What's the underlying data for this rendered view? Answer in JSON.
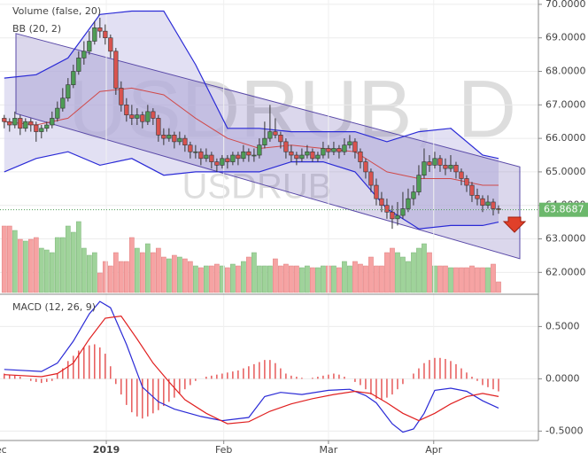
{
  "chart_data": [
    {
      "type": "candlestick",
      "watermark": "USDRUB, D",
      "watermark_sub": "USDRUB",
      "indicator_labels": [
        "Volume (false, 20)",
        "BB (20, 2)"
      ],
      "xlim": [
        -0.8,
        100.5
      ],
      "ylim": [
        61.4,
        70.13
      ],
      "yticks": [
        {
          "value": 62,
          "label": "62.0000"
        },
        {
          "value": 63,
          "label": "63.0000"
        },
        {
          "value": 64,
          "label": "64.0000"
        },
        {
          "value": 65,
          "label": "65.0000"
        },
        {
          "value": 66,
          "label": "66.0000"
        },
        {
          "value": 67,
          "label": "67.0000"
        },
        {
          "value": 68,
          "label": "68.0000"
        },
        {
          "value": 69,
          "label": "69.0000"
        },
        {
          "value": 70,
          "label": "70.0000"
        }
      ],
      "up_color": "#4e9c55",
      "down_color": "#d9534f",
      "volume_up_color": "#9fd39a",
      "volume_down_color": "#f6a3a3",
      "candles": [
        [
          66.6,
          66.7,
          66.3,
          66.5
        ],
        [
          66.5,
          66.6,
          66.2,
          66.4
        ],
        [
          66.4,
          66.8,
          66.3,
          66.6
        ],
        [
          66.6,
          66.7,
          66.1,
          66.3
        ],
        [
          66.3,
          66.6,
          66.2,
          66.5
        ],
        [
          66.5,
          66.6,
          66.2,
          66.4
        ],
        [
          66.4,
          66.5,
          65.9,
          66.2
        ],
        [
          66.2,
          66.4,
          66.0,
          66.3
        ],
        [
          66.3,
          66.5,
          66.2,
          66.4
        ],
        [
          66.4,
          66.8,
          66.3,
          66.6
        ],
        [
          66.6,
          67.1,
          66.5,
          66.9
        ],
        [
          66.9,
          67.5,
          66.8,
          67.2
        ],
        [
          67.2,
          67.8,
          67.1,
          67.6
        ],
        [
          67.6,
          68.2,
          67.5,
          68.0
        ],
        [
          68.0,
          68.6,
          67.9,
          68.4
        ],
        [
          68.4,
          68.9,
          68.2,
          68.6
        ],
        [
          68.6,
          69.2,
          68.5,
          68.9
        ],
        [
          68.9,
          69.5,
          68.8,
          69.3
        ],
        [
          69.3,
          69.6,
          69.0,
          69.2
        ],
        [
          69.2,
          69.4,
          68.8,
          69.0
        ],
        [
          69.0,
          69.1,
          68.4,
          68.6
        ],
        [
          68.6,
          68.7,
          67.3,
          67.5
        ],
        [
          67.5,
          67.7,
          66.8,
          67.0
        ],
        [
          67.0,
          67.2,
          66.5,
          66.7
        ],
        [
          66.7,
          67.0,
          66.4,
          66.6
        ],
        [
          66.6,
          66.9,
          66.4,
          66.7
        ],
        [
          66.7,
          66.8,
          66.3,
          66.5
        ],
        [
          66.5,
          67.0,
          66.4,
          66.8
        ],
        [
          66.8,
          66.9,
          66.4,
          66.6
        ],
        [
          66.6,
          66.7,
          65.9,
          66.1
        ],
        [
          66.1,
          66.3,
          65.8,
          66.0
        ],
        [
          66.0,
          66.3,
          65.9,
          66.1
        ],
        [
          66.1,
          66.2,
          65.7,
          65.9
        ],
        [
          65.9,
          66.2,
          65.8,
          66.0
        ],
        [
          66.0,
          66.1,
          65.6,
          65.8
        ],
        [
          65.8,
          65.9,
          65.4,
          65.6
        ],
        [
          65.6,
          65.8,
          65.4,
          65.6
        ],
        [
          65.6,
          65.7,
          65.2,
          65.4
        ],
        [
          65.4,
          65.7,
          65.3,
          65.5
        ],
        [
          65.5,
          65.6,
          65.1,
          65.3
        ],
        [
          65.3,
          65.4,
          65.0,
          65.2
        ],
        [
          65.2,
          65.5,
          65.1,
          65.4
        ],
        [
          65.4,
          65.5,
          65.1,
          65.3
        ],
        [
          65.3,
          65.6,
          65.2,
          65.5
        ],
        [
          65.5,
          65.6,
          65.2,
          65.4
        ],
        [
          65.4,
          65.8,
          65.3,
          65.6
        ],
        [
          65.6,
          65.7,
          65.3,
          65.5
        ],
        [
          65.5,
          65.7,
          65.3,
          65.5
        ],
        [
          65.5,
          66.0,
          65.4,
          65.8
        ],
        [
          65.8,
          66.5,
          65.7,
          66.0
        ],
        [
          66.0,
          67.0,
          65.9,
          66.2
        ],
        [
          66.2,
          66.6,
          66.0,
          66.1
        ],
        [
          66.1,
          66.2,
          65.7,
          65.9
        ],
        [
          65.9,
          66.0,
          65.4,
          65.6
        ],
        [
          65.6,
          65.8,
          65.3,
          65.5
        ],
        [
          65.5,
          65.6,
          65.2,
          65.4
        ],
        [
          65.4,
          65.7,
          65.3,
          65.5
        ],
        [
          65.5,
          65.8,
          65.4,
          65.6
        ],
        [
          65.6,
          65.7,
          65.3,
          65.4
        ],
        [
          65.4,
          65.6,
          65.3,
          65.5
        ],
        [
          65.5,
          65.9,
          65.4,
          65.7
        ],
        [
          65.7,
          65.8,
          65.4,
          65.6
        ],
        [
          65.6,
          65.9,
          65.5,
          65.7
        ],
        [
          65.7,
          65.8,
          65.4,
          65.6
        ],
        [
          65.6,
          66.0,
          65.5,
          65.8
        ],
        [
          65.8,
          66.1,
          65.7,
          65.9
        ],
        [
          65.9,
          66.0,
          65.4,
          65.6
        ],
        [
          65.6,
          65.7,
          65.1,
          65.3
        ],
        [
          65.3,
          65.4,
          64.8,
          65.0
        ],
        [
          65.0,
          65.1,
          64.4,
          64.6
        ],
        [
          64.6,
          64.8,
          64.0,
          64.2
        ],
        [
          64.2,
          64.4,
          63.8,
          64.0
        ],
        [
          64.0,
          64.2,
          63.6,
          63.8
        ],
        [
          63.8,
          64.0,
          63.3,
          63.6
        ],
        [
          63.6,
          64.1,
          63.4,
          63.7
        ],
        [
          63.7,
          64.4,
          63.6,
          63.9
        ],
        [
          63.9,
          64.5,
          63.8,
          64.2
        ],
        [
          64.2,
          64.6,
          64.0,
          64.4
        ],
        [
          64.4,
          65.2,
          64.3,
          64.9
        ],
        [
          64.9,
          65.7,
          64.8,
          65.3
        ],
        [
          65.3,
          65.5,
          65.0,
          65.2
        ],
        [
          65.2,
          65.6,
          65.1,
          65.4
        ],
        [
          65.4,
          65.5,
          65.0,
          65.2
        ],
        [
          65.2,
          65.4,
          64.9,
          65.1
        ],
        [
          65.1,
          65.5,
          65.0,
          65.2
        ],
        [
          65.2,
          65.3,
          64.8,
          65.0
        ],
        [
          65.0,
          65.1,
          64.6,
          64.8
        ],
        [
          64.8,
          64.9,
          64.4,
          64.6
        ],
        [
          64.6,
          64.7,
          64.1,
          64.3
        ],
        [
          64.3,
          64.5,
          64.0,
          64.2
        ],
        [
          64.2,
          64.3,
          63.8,
          64.0
        ],
        [
          64.0,
          64.3,
          63.9,
          64.1
        ],
        [
          64.1,
          64.2,
          63.7,
          63.9
        ],
        [
          63.9,
          64.0,
          63.75,
          63.8687
        ]
      ],
      "volume": [
        75,
        75,
        70,
        60,
        58,
        60,
        62,
        50,
        48,
        45,
        62,
        62,
        75,
        68,
        80,
        50,
        42,
        45,
        22,
        35,
        30,
        45,
        35,
        35,
        62,
        50,
        45,
        55,
        45,
        50,
        40,
        38,
        42,
        40,
        38,
        35,
        30,
        28,
        30,
        30,
        32,
        30,
        28,
        32,
        30,
        35,
        40,
        45,
        30,
        30,
        30,
        38,
        30,
        32,
        30,
        30,
        28,
        30,
        28,
        28,
        30,
        30,
        30,
        28,
        35,
        30,
        35,
        32,
        30,
        40,
        30,
        30,
        45,
        50,
        45,
        40,
        35,
        45,
        50,
        55,
        45,
        30,
        30,
        30,
        28,
        28,
        28,
        28,
        30,
        28,
        28,
        28,
        32,
        12
      ],
      "bollinger": {
        "x": [
          0,
          6,
          12,
          18,
          24,
          30,
          36,
          42,
          48,
          54,
          60,
          66,
          72,
          78,
          84,
          90,
          93
        ],
        "upper": [
          67.8,
          67.9,
          68.4,
          69.7,
          69.8,
          69.8,
          68.2,
          66.3,
          66.3,
          66.2,
          66.2,
          66.2,
          65.9,
          66.2,
          66.3,
          65.5,
          65.4
        ],
        "middle": [
          66.5,
          66.4,
          66.6,
          67.4,
          67.5,
          67.3,
          66.6,
          66.0,
          65.7,
          65.8,
          65.7,
          65.6,
          65.0,
          64.8,
          64.8,
          64.6,
          64.6
        ],
        "lower": [
          65.0,
          65.4,
          65.6,
          65.2,
          65.4,
          64.9,
          65.0,
          65.0,
          65.0,
          65.3,
          65.3,
          65.0,
          63.9,
          63.3,
          63.4,
          63.4,
          63.5
        ],
        "band_color": "#2a2ad6",
        "middle_color": "#d04a4a",
        "fill": "#d6d3ee"
      },
      "channel": {
        "x": [
          2.2,
          97
        ],
        "upper": [
          69.13,
          65.15
        ],
        "lower": [
          66.74,
          62.41
        ],
        "color": "#5a4aa8"
      },
      "last_price": {
        "value": 63.8687,
        "label": "63.8687"
      }
    },
    {
      "type": "macd",
      "title": "MACD (12, 26, 9)",
      "xlim": [
        -0.8,
        100.5
      ],
      "ylim": [
        -0.59,
        0.8
      ],
      "yticks": [
        {
          "value": -0.5,
          "label": "-0.5000"
        },
        {
          "value": 0,
          "label": "0.0000"
        },
        {
          "value": 0.5,
          "label": "0.5000"
        }
      ],
      "xticks": [
        {
          "value": -1.3,
          "label": "Dec"
        },
        {
          "value": 19.2,
          "label": "2019"
        },
        {
          "value": 41.3,
          "label": "Feb"
        },
        {
          "value": 61,
          "label": "Mar"
        },
        {
          "value": 80.8,
          "label": "Apr"
        }
      ],
      "series": [
        {
          "color": "#2a2ad6",
          "x": [
            0,
            7,
            10,
            13,
            16,
            18,
            20,
            23,
            26,
            29,
            32,
            37,
            41,
            46,
            49,
            52,
            56,
            61,
            65,
            68,
            70,
            73,
            75,
            77,
            79,
            81,
            84,
            87,
            90,
            93
          ],
          "values": [
            0.09,
            0.07,
            0.15,
            0.36,
            0.62,
            0.74,
            0.68,
            0.33,
            -0.08,
            -0.22,
            -0.29,
            -0.36,
            -0.4,
            -0.37,
            -0.17,
            -0.13,
            -0.15,
            -0.11,
            -0.1,
            -0.16,
            -0.23,
            -0.43,
            -0.51,
            -0.48,
            -0.33,
            -0.11,
            -0.09,
            -0.12,
            -0.21,
            -0.28
          ]
        },
        {
          "color": "#e02020",
          "x": [
            0,
            7,
            10,
            13,
            16,
            19,
            22,
            25,
            28,
            31,
            34,
            38,
            42,
            46,
            50,
            54,
            58,
            62,
            66,
            69,
            72,
            75,
            78,
            81,
            84,
            87,
            90,
            93
          ],
          "values": [
            0.04,
            0.02,
            0.05,
            0.15,
            0.38,
            0.58,
            0.6,
            0.38,
            0.15,
            -0.03,
            -0.2,
            -0.33,
            -0.43,
            -0.41,
            -0.31,
            -0.24,
            -0.19,
            -0.15,
            -0.12,
            -0.14,
            -0.23,
            -0.33,
            -0.4,
            -0.33,
            -0.24,
            -0.17,
            -0.14,
            -0.17
          ]
        }
      ],
      "histogram_color": "#e03030",
      "histogram": [
        0.05,
        0.04,
        0.03,
        0.02,
        0.0,
        -0.02,
        -0.03,
        -0.04,
        -0.03,
        -0.02,
        0.05,
        0.1,
        0.17,
        0.22,
        0.27,
        0.3,
        0.32,
        0.33,
        0.3,
        0.24,
        0.12,
        -0.05,
        -0.15,
        -0.25,
        -0.32,
        -0.36,
        -0.38,
        -0.36,
        -0.33,
        -0.3,
        -0.26,
        -0.22,
        -0.18,
        -0.14,
        -0.1,
        -0.06,
        -0.02,
        0.0,
        0.02,
        0.03,
        0.04,
        0.05,
        0.06,
        0.07,
        0.08,
        0.1,
        0.12,
        0.14,
        0.16,
        0.18,
        0.18,
        0.15,
        0.1,
        0.05,
        0.03,
        0.02,
        0.01,
        0.0,
        0.01,
        0.02,
        0.03,
        0.04,
        0.05,
        0.04,
        0.02,
        0.0,
        -0.03,
        -0.06,
        -0.1,
        -0.15,
        -0.19,
        -0.2,
        -0.18,
        -0.15,
        -0.1,
        -0.05,
        0.0,
        0.05,
        0.1,
        0.15,
        0.18,
        0.2,
        0.2,
        0.19,
        0.17,
        0.14,
        0.1,
        0.06,
        0.02,
        -0.02,
        -0.06,
        -0.08,
        -0.1,
        -0.12
      ]
    }
  ]
}
